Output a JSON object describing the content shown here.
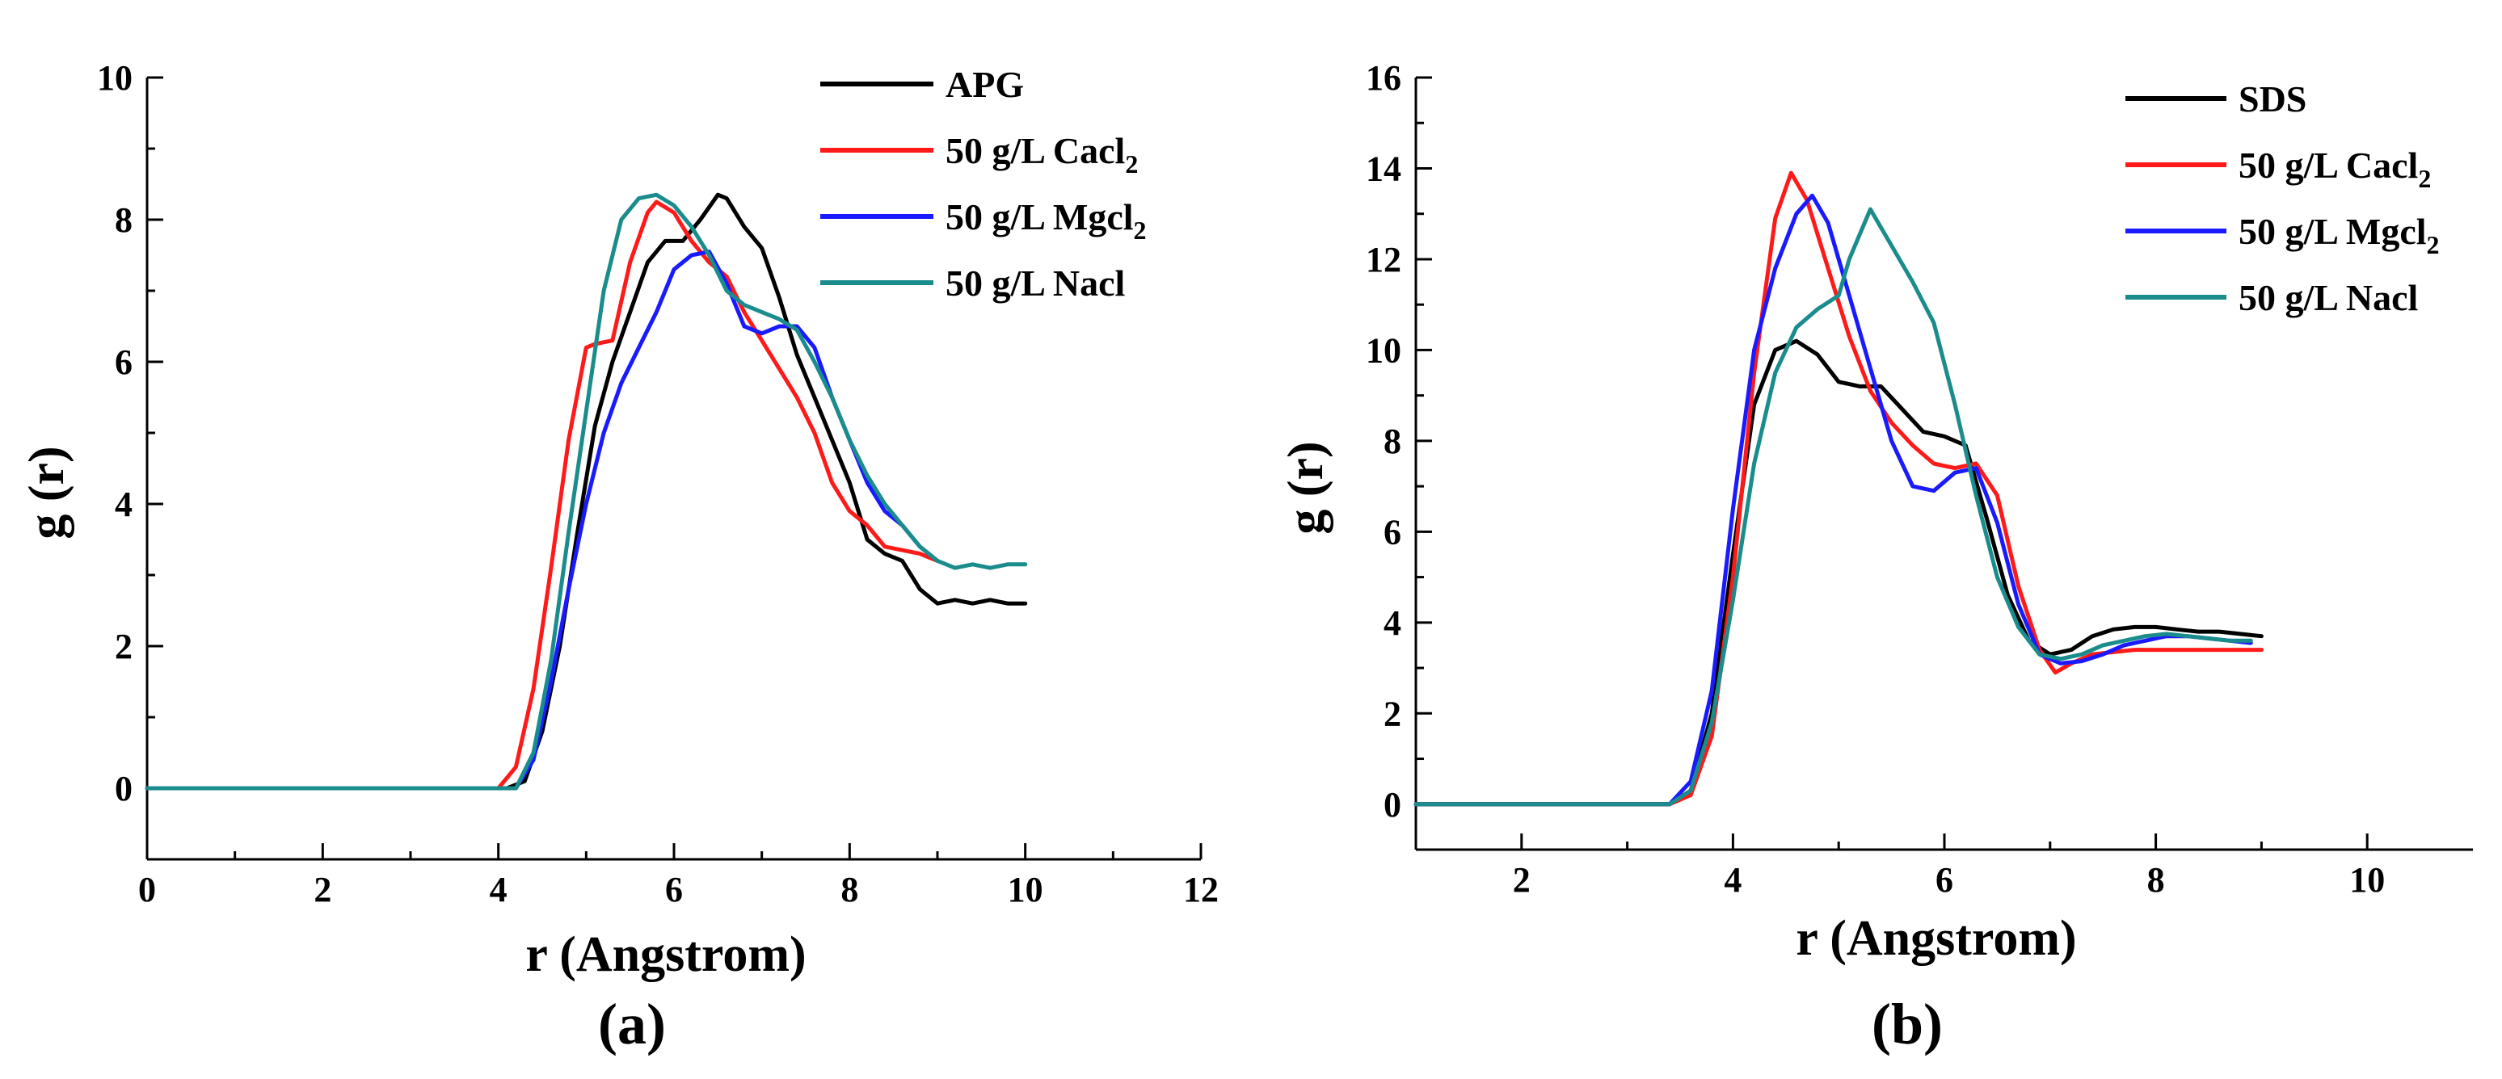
{
  "colors": {
    "black": "#000000",
    "red": "#ff1a1a",
    "blue": "#1a1aff",
    "teal": "#1a8c8c"
  },
  "chart_data": [
    {
      "type": "line",
      "panel_label": "(a)",
      "xlabel": "r (Angstrom)",
      "ylabel": "g (r)",
      "xlim": [
        0,
        12
      ],
      "ylim": [
        -1,
        10
      ],
      "xticks": [
        "0",
        "2",
        "4",
        "6",
        "8",
        "10",
        "12"
      ],
      "xtick_values": [
        0,
        2,
        4,
        6,
        8,
        10,
        12
      ],
      "yticks": [
        "0",
        "2",
        "4",
        "6",
        "8",
        "10"
      ],
      "ytick_values": [
        0,
        2,
        4,
        6,
        8,
        10
      ],
      "legend_position": "top-right",
      "series": [
        {
          "name": "APG",
          "name_sub": "",
          "color": "#000000",
          "x": [
            0,
            4.1,
            4.3,
            4.5,
            4.7,
            4.9,
            5.1,
            5.3,
            5.5,
            5.7,
            5.9,
            6.1,
            6.3,
            6.5,
            6.6,
            6.8,
            7.0,
            7.2,
            7.4,
            7.6,
            7.8,
            8.0,
            8.2,
            8.4,
            8.6,
            8.8,
            9.0,
            9.2,
            9.4,
            9.6,
            9.8,
            10.0
          ],
          "y": [
            0,
            0,
            0.1,
            0.8,
            2.0,
            3.6,
            5.1,
            6.0,
            6.7,
            7.4,
            7.7,
            7.7,
            8.0,
            8.35,
            8.3,
            7.9,
            7.6,
            6.9,
            6.1,
            5.5,
            4.9,
            4.3,
            3.5,
            3.3,
            3.2,
            2.8,
            2.6,
            2.65,
            2.6,
            2.65,
            2.6,
            2.6
          ]
        },
        {
          "name": "50 g/L Cacl",
          "name_sub": "2",
          "color": "#ff1a1a",
          "x": [
            0,
            4.0,
            4.2,
            4.4,
            4.6,
            4.8,
            5.0,
            5.1,
            5.3,
            5.5,
            5.7,
            5.8,
            6.0,
            6.2,
            6.4,
            6.6,
            6.8,
            7.0,
            7.2,
            7.4,
            7.6,
            7.8,
            8.0,
            8.2,
            8.4,
            8.6,
            8.8,
            9.0
          ],
          "y": [
            0,
            0,
            0.3,
            1.4,
            3.1,
            4.9,
            6.2,
            6.25,
            6.3,
            7.4,
            8.1,
            8.25,
            8.1,
            7.7,
            7.4,
            7.2,
            6.7,
            6.3,
            5.9,
            5.5,
            5.0,
            4.3,
            3.9,
            3.7,
            3.4,
            3.35,
            3.3,
            3.2
          ]
        },
        {
          "name": "50 g/L Mgcl",
          "name_sub": "2",
          "color": "#1a1aff",
          "x": [
            0,
            4.2,
            4.4,
            4.6,
            4.8,
            5.0,
            5.2,
            5.4,
            5.6,
            5.8,
            6.0,
            6.2,
            6.4,
            6.6,
            6.8,
            7.0,
            7.2,
            7.4,
            7.6,
            7.8,
            8.0,
            8.2,
            8.4,
            8.6,
            8.8,
            9.0
          ],
          "y": [
            0,
            0,
            0.4,
            1.5,
            2.8,
            4.0,
            5.0,
            5.7,
            6.2,
            6.7,
            7.3,
            7.5,
            7.55,
            7.1,
            6.5,
            6.4,
            6.5,
            6.5,
            6.2,
            5.5,
            4.9,
            4.3,
            3.9,
            3.7,
            3.4,
            3.2
          ]
        },
        {
          "name": "50 g/L Nacl",
          "name_sub": "",
          "color": "#1a8c8c",
          "x": [
            0,
            4.2,
            4.4,
            4.6,
            4.8,
            5.0,
            5.2,
            5.4,
            5.6,
            5.8,
            6.0,
            6.2,
            6.4,
            6.6,
            6.8,
            7.0,
            7.2,
            7.4,
            7.6,
            7.8,
            8.0,
            8.2,
            8.4,
            8.6,
            8.8,
            9.0,
            9.2,
            9.4,
            9.6,
            9.8,
            10.0
          ],
          "y": [
            0,
            0,
            0.5,
            1.8,
            3.6,
            5.3,
            7.0,
            8.0,
            8.3,
            8.35,
            8.2,
            7.9,
            7.5,
            7.0,
            6.8,
            6.7,
            6.6,
            6.45,
            6.0,
            5.5,
            4.9,
            4.4,
            4.0,
            3.7,
            3.4,
            3.2,
            3.1,
            3.15,
            3.1,
            3.15,
            3.15
          ]
        }
      ]
    },
    {
      "type": "line",
      "panel_label": "(b)",
      "xlabel": "r (Angstrom)",
      "ylabel": "g (r)",
      "xlim": [
        1,
        11
      ],
      "ylim": [
        -1,
        16
      ],
      "xticks": [
        "2",
        "4",
        "6",
        "8",
        "10"
      ],
      "xtick_values": [
        2,
        4,
        6,
        8,
        10
      ],
      "yticks": [
        "0",
        "2",
        "4",
        "6",
        "8",
        "10",
        "12",
        "14",
        "16"
      ],
      "ytick_values": [
        0,
        2,
        4,
        6,
        8,
        10,
        12,
        14,
        16
      ],
      "legend_position": "top-right",
      "series": [
        {
          "name": "SDS",
          "name_sub": "",
          "color": "#000000",
          "x": [
            1,
            3.4,
            3.6,
            3.8,
            4.0,
            4.2,
            4.4,
            4.6,
            4.8,
            5.0,
            5.2,
            5.4,
            5.6,
            5.8,
            6.0,
            6.2,
            6.4,
            6.6,
            6.8,
            7.0,
            7.2,
            7.4,
            7.6,
            7.8,
            8.0,
            8.2,
            8.4,
            8.6,
            8.8,
            9.0
          ],
          "y": [
            0,
            0,
            0.3,
            2.0,
            5.5,
            8.8,
            10.0,
            10.2,
            9.9,
            9.3,
            9.2,
            9.2,
            8.7,
            8.2,
            8.1,
            7.9,
            6.3,
            4.6,
            3.6,
            3.3,
            3.4,
            3.7,
            3.85,
            3.9,
            3.9,
            3.85,
            3.8,
            3.8,
            3.75,
            3.7
          ]
        },
        {
          "name": "50 g/L Cacl",
          "name_sub": "2",
          "color": "#ff1a1a",
          "x": [
            1,
            3.4,
            3.6,
            3.8,
            4.0,
            4.2,
            4.4,
            4.55,
            4.7,
            4.9,
            5.1,
            5.3,
            5.5,
            5.7,
            5.9,
            6.1,
            6.3,
            6.5,
            6.7,
            6.9,
            7.05,
            7.2,
            7.4,
            7.6,
            7.8,
            8.0,
            8.2,
            8.4,
            8.6,
            8.8,
            9.0
          ],
          "y": [
            0,
            0,
            0.2,
            1.5,
            5.0,
            9.5,
            12.9,
            13.9,
            13.3,
            11.8,
            10.3,
            9.1,
            8.4,
            7.9,
            7.5,
            7.4,
            7.5,
            6.8,
            4.8,
            3.4,
            2.9,
            3.1,
            3.3,
            3.35,
            3.4,
            3.4,
            3.4,
            3.4,
            3.4,
            3.4,
            3.4
          ]
        },
        {
          "name": "50 g/L Mgcl",
          "name_sub": "2",
          "color": "#1a1aff",
          "x": [
            1,
            3.4,
            3.6,
            3.8,
            4.0,
            4.2,
            4.4,
            4.6,
            4.75,
            4.9,
            5.1,
            5.3,
            5.5,
            5.7,
            5.9,
            6.1,
            6.3,
            6.5,
            6.7,
            6.9,
            7.1,
            7.3,
            7.5,
            7.7,
            7.9,
            8.1,
            8.3,
            8.5,
            8.7,
            8.9
          ],
          "y": [
            0,
            0,
            0.5,
            2.5,
            6.5,
            10.0,
            11.8,
            13.0,
            13.4,
            12.8,
            11.2,
            9.6,
            8.0,
            7.0,
            6.9,
            7.3,
            7.4,
            6.2,
            4.4,
            3.3,
            3.1,
            3.15,
            3.3,
            3.5,
            3.6,
            3.7,
            3.7,
            3.65,
            3.6,
            3.55
          ]
        },
        {
          "name": "50 g/L Nacl",
          "name_sub": "",
          "color": "#1a8c8c",
          "x": [
            1,
            3.4,
            3.6,
            3.8,
            4.0,
            4.2,
            4.4,
            4.6,
            4.8,
            5.0,
            5.1,
            5.3,
            5.5,
            5.7,
            5.9,
            6.1,
            6.3,
            6.5,
            6.7,
            6.9,
            7.1,
            7.3,
            7.5,
            7.7,
            7.9,
            8.1,
            8.3,
            8.5,
            8.7,
            8.9
          ],
          "y": [
            0,
            0,
            0.3,
            1.8,
            4.5,
            7.5,
            9.5,
            10.5,
            10.9,
            11.2,
            12.0,
            13.1,
            12.3,
            11.5,
            10.6,
            8.8,
            6.8,
            5.0,
            3.9,
            3.3,
            3.2,
            3.3,
            3.5,
            3.6,
            3.7,
            3.75,
            3.7,
            3.65,
            3.6,
            3.6
          ]
        }
      ]
    }
  ]
}
